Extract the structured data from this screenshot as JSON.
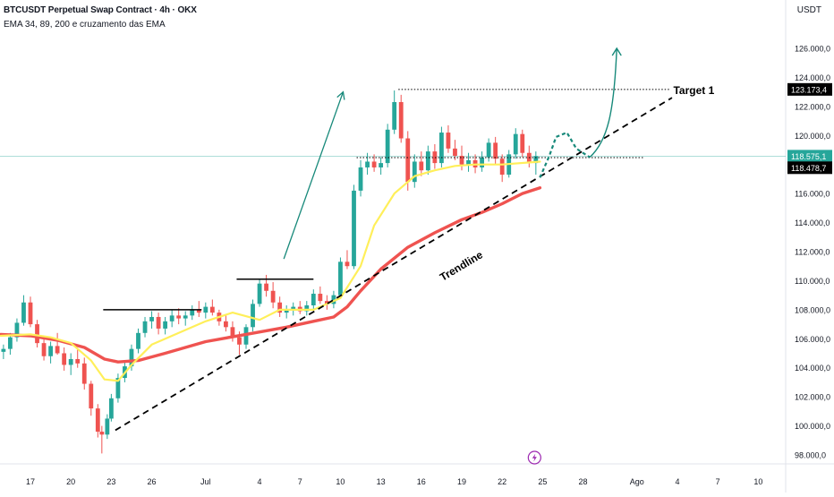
{
  "header": {
    "title": "BTCUSDT Perpetual Swap Contract · 4h · OKX",
    "indicators": "EMA 34, 89, 200 e cruzamento das EMA",
    "currency": "USDT"
  },
  "colors": {
    "up": "#26a69a",
    "down": "#ef5350",
    "ema_fast": "#ffef5a",
    "ema_slow": "#ef5350",
    "arrow": "#17897a",
    "current_price_bg": "#26a69a"
  },
  "chart_data": {
    "type": "candlestick",
    "y_axis": {
      "ticks": [
        "98.000,0",
        "100.000,0",
        "102.000,0",
        "104.000,0",
        "106.000,0",
        "108.000,0",
        "110.000,0",
        "112.000,0",
        "114.000,0",
        "116.000,0",
        "118.000,0",
        "120.000,0",
        "122.000,0",
        "124.000,0",
        "126.000,0"
      ],
      "tick_values": [
        98000,
        100000,
        102000,
        104000,
        106000,
        108000,
        110000,
        112000,
        114000,
        116000,
        118000,
        120000,
        122000,
        124000,
        126000
      ],
      "range": [
        97000,
        128000
      ]
    },
    "x_axis": {
      "ticks": [
        "17",
        "20",
        "23",
        "26",
        "Jul",
        "4",
        "7",
        "10",
        "13",
        "16",
        "19",
        "22",
        "25",
        "28",
        "Ago",
        "4",
        "7",
        "10"
      ],
      "tick_days": [
        17,
        20,
        23,
        26,
        30,
        34,
        37,
        40,
        43,
        46,
        49,
        52,
        55,
        58,
        62,
        65,
        68,
        71
      ],
      "day_range": [
        14.8,
        73.5
      ]
    },
    "price_labels": {
      "target": "123.173,4",
      "current": "118.575,1",
      "level": "118.478,7"
    },
    "price_values": {
      "target": 123173.4,
      "current": 118575.1,
      "level": 118478.7
    },
    "annotations": {
      "target_text": "Target 1",
      "trendline_text": "Trendline"
    },
    "series": [
      {
        "kind": "ema_slow",
        "points": [
          [
            14.8,
            106300
          ],
          [
            17,
            106200
          ],
          [
            19,
            105900
          ],
          [
            21,
            105400
          ],
          [
            22.5,
            104600
          ],
          [
            23.5,
            104400
          ],
          [
            25,
            104500
          ],
          [
            27,
            105000
          ],
          [
            30,
            105800
          ],
          [
            33,
            106300
          ],
          [
            36,
            106800
          ],
          [
            38,
            107200
          ],
          [
            39.5,
            107500
          ],
          [
            40.5,
            108200
          ],
          [
            41.5,
            109300
          ],
          [
            43,
            110800
          ],
          [
            45,
            112300
          ],
          [
            47,
            113300
          ],
          [
            49,
            114200
          ],
          [
            50.5,
            114700
          ],
          [
            52,
            115300
          ],
          [
            53.5,
            116000
          ],
          [
            54.8,
            116400
          ]
        ]
      },
      {
        "kind": "ema_fast",
        "points": [
          [
            14.8,
            106200
          ],
          [
            17,
            106300
          ],
          [
            18.5,
            106100
          ],
          [
            20,
            105700
          ],
          [
            21.5,
            104500
          ],
          [
            22.5,
            103200
          ],
          [
            23.5,
            103100
          ],
          [
            24.5,
            104200
          ],
          [
            26,
            105600
          ],
          [
            28,
            106400
          ],
          [
            30,
            107200
          ],
          [
            32,
            107800
          ],
          [
            34,
            107300
          ],
          [
            35.5,
            108000
          ],
          [
            38,
            108000
          ],
          [
            40,
            108800
          ],
          [
            41.5,
            111000
          ],
          [
            42.5,
            113800
          ],
          [
            44,
            116000
          ],
          [
            45.5,
            117200
          ],
          [
            47,
            117600
          ],
          [
            48.5,
            117900
          ],
          [
            50,
            118000
          ],
          [
            52,
            118000
          ],
          [
            54.8,
            118200
          ]
        ]
      }
    ],
    "lines": {
      "trendline": [
        [
          23.3,
          99700
        ],
        [
          64.6,
          122600
        ]
      ],
      "target_dotted": [
        [
          44.3,
          123173.4
        ],
        [
          64.5,
          123173.4
        ]
      ],
      "level_dotted": [
        [
          41.2,
          118478.7
        ],
        [
          62.5,
          118478.7
        ]
      ],
      "resistance_1": [
        [
          22.4,
          108000
        ],
        [
          29.7,
          108000
        ]
      ],
      "resistance_2": [
        [
          32.3,
          110100
        ],
        [
          38,
          110100
        ]
      ],
      "arrow_1": [
        [
          35.8,
          111500
        ],
        [
          40.2,
          123000
        ]
      ],
      "projection_dashed": [
        [
          54.8,
          117100
        ],
        [
          55.5,
          118600
        ],
        [
          56,
          119900
        ],
        [
          56.8,
          120200
        ],
        [
          57.5,
          119100
        ],
        [
          58.5,
          118500
        ]
      ],
      "arrow_2": [
        [
          58.5,
          118500
        ],
        [
          59.8,
          119600
        ],
        [
          60.3,
          121500
        ],
        [
          60.5,
          126000
        ]
      ]
    },
    "candles": [
      [
        15.0,
        105100,
        105600,
        104600,
        105300
      ],
      [
        15.5,
        105300,
        106400,
        104900,
        106100
      ],
      [
        16.0,
        106100,
        107400,
        105800,
        107100
      ],
      [
        16.5,
        107100,
        109000,
        106900,
        108500
      ],
      [
        17.0,
        108500,
        108900,
        106800,
        107000
      ],
      [
        17.5,
        107000,
        107300,
        105400,
        105700
      ],
      [
        18.0,
        105700,
        106000,
        104500,
        104800
      ],
      [
        18.5,
        104800,
        105800,
        104300,
        105500
      ],
      [
        19.0,
        105500,
        106400,
        104900,
        105000
      ],
      [
        19.5,
        105000,
        105400,
        103800,
        104200
      ],
      [
        20.0,
        104200,
        105000,
        103500,
        104600
      ],
      [
        20.5,
        104600,
        105300,
        104000,
        104300
      ],
      [
        21.0,
        104300,
        104700,
        102500,
        102900
      ],
      [
        21.5,
        102900,
        103100,
        100700,
        101200
      ],
      [
        22.0,
        101200,
        101500,
        99200,
        99600
      ],
      [
        22.3,
        99600,
        100000,
        98100,
        99400
      ],
      [
        22.7,
        99400,
        100800,
        99100,
        100500
      ],
      [
        23.0,
        100500,
        102200,
        100300,
        101900
      ],
      [
        23.5,
        101900,
        103600,
        101600,
        103300
      ],
      [
        24.0,
        103300,
        104400,
        103000,
        104100
      ],
      [
        24.5,
        104100,
        105600,
        103800,
        105300
      ],
      [
        25.0,
        105300,
        106700,
        105000,
        106400
      ],
      [
        25.5,
        106400,
        107500,
        106100,
        107200
      ],
      [
        26.0,
        107200,
        107900,
        106700,
        107500
      ],
      [
        26.5,
        107500,
        107800,
        106300,
        106700
      ],
      [
        27.0,
        106700,
        107500,
        106300,
        107200
      ],
      [
        27.5,
        107200,
        108000,
        106800,
        107600
      ],
      [
        28.0,
        107600,
        108100,
        107000,
        107400
      ],
      [
        28.5,
        107400,
        107900,
        106900,
        107600
      ],
      [
        29.0,
        107600,
        108300,
        107300,
        108000
      ],
      [
        29.5,
        108000,
        108600,
        107500,
        107800
      ],
      [
        30.0,
        107800,
        108500,
        107400,
        108200
      ],
      [
        30.5,
        108200,
        108700,
        107600,
        107800
      ],
      [
        31.0,
        107800,
        108000,
        106900,
        107200
      ],
      [
        31.5,
        107200,
        107600,
        106500,
        106800
      ],
      [
        32.0,
        106800,
        107200,
        105800,
        106100
      ],
      [
        32.5,
        106100,
        106500,
        104900,
        105600
      ],
      [
        33.0,
        105600,
        107000,
        105300,
        106800
      ],
      [
        33.5,
        106800,
        108700,
        106500,
        108400
      ],
      [
        34.0,
        108400,
        110100,
        108200,
        109800
      ],
      [
        34.5,
        109800,
        110400,
        108900,
        109300
      ],
      [
        35.0,
        109300,
        109900,
        108100,
        108500
      ],
      [
        35.5,
        108500,
        108900,
        107500,
        107800
      ],
      [
        36.0,
        107800,
        108300,
        107400,
        108000
      ],
      [
        36.5,
        108000,
        108500,
        107600,
        108200
      ],
      [
        37.0,
        108200,
        108600,
        107700,
        107900
      ],
      [
        37.5,
        107900,
        108600,
        107600,
        108300
      ],
      [
        38.0,
        108300,
        109400,
        108000,
        109100
      ],
      [
        38.5,
        109100,
        109600,
        108400,
        108600
      ],
      [
        39.0,
        108600,
        109000,
        108000,
        108400
      ],
      [
        39.5,
        108400,
        109300,
        108100,
        109000
      ],
      [
        40.0,
        109000,
        111600,
        108800,
        111300
      ],
      [
        40.5,
        111300,
        112100,
        110800,
        111000
      ],
      [
        41.0,
        111000,
        116600,
        110800,
        116200
      ],
      [
        41.5,
        116200,
        118300,
        115800,
        117800
      ],
      [
        42.0,
        117800,
        118800,
        117300,
        118200
      ],
      [
        42.5,
        118200,
        118700,
        117500,
        117800
      ],
      [
        43.0,
        117800,
        118500,
        117300,
        118100
      ],
      [
        43.5,
        118100,
        120800,
        117800,
        120400
      ],
      [
        44.0,
        120400,
        123100,
        120100,
        122300
      ],
      [
        44.5,
        122300,
        122800,
        119500,
        119800
      ],
      [
        45.0,
        119800,
        120300,
        116200,
        116800
      ],
      [
        45.5,
        116800,
        118700,
        116400,
        118200
      ],
      [
        46.0,
        118200,
        118900,
        117200,
        117600
      ],
      [
        46.5,
        117600,
        119300,
        117300,
        118900
      ],
      [
        47.0,
        118900,
        119400,
        117700,
        118100
      ],
      [
        47.5,
        118100,
        120600,
        117800,
        120200
      ],
      [
        48.0,
        120200,
        120700,
        118800,
        119100
      ],
      [
        48.5,
        119100,
        119700,
        118300,
        118600
      ],
      [
        49.0,
        118600,
        119300,
        117600,
        118000
      ],
      [
        49.5,
        118000,
        118800,
        117500,
        118300
      ],
      [
        50.0,
        118300,
        118700,
        117400,
        117800
      ],
      [
        50.5,
        117800,
        118900,
        117500,
        118500
      ],
      [
        51.0,
        118500,
        119800,
        118200,
        119500
      ],
      [
        51.5,
        119500,
        119900,
        118000,
        118400
      ],
      [
        52.0,
        118400,
        118700,
        116800,
        117300
      ],
      [
        52.5,
        117300,
        119000,
        117100,
        118700
      ],
      [
        53.0,
        118700,
        120500,
        118400,
        120100
      ],
      [
        53.5,
        120100,
        120400,
        118500,
        118800
      ],
      [
        54.0,
        118800,
        119300,
        117800,
        118100
      ],
      [
        54.5,
        118100,
        118900,
        117300,
        118575
      ]
    ]
  }
}
